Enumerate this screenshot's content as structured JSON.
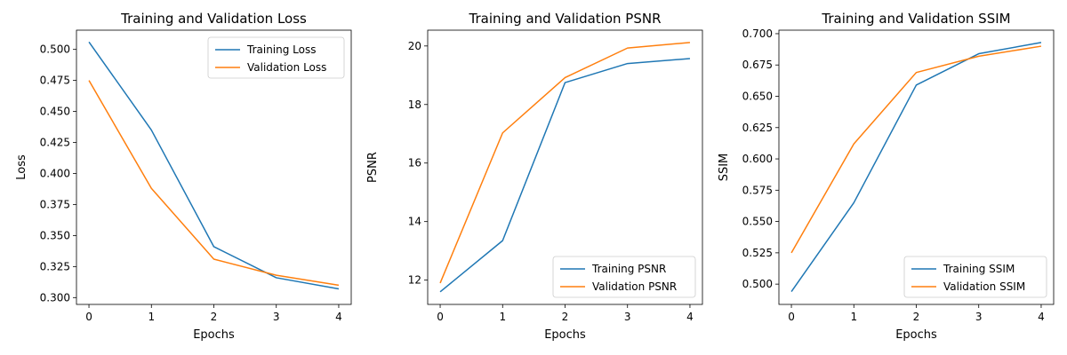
{
  "chart_data": [
    {
      "type": "line",
      "title": "Training and Validation Loss",
      "xlabel": "Epochs",
      "ylabel": "Loss",
      "x": [
        0,
        1,
        2,
        3,
        4
      ],
      "xticks": [
        "0",
        "1",
        "2",
        "3",
        "4"
      ],
      "xlim": [
        -0.2,
        4.2
      ],
      "ylim": [
        0.2945,
        0.5155
      ],
      "yticks": [
        "0.300",
        "0.325",
        "0.350",
        "0.375",
        "0.400",
        "0.425",
        "0.450",
        "0.475",
        "0.500"
      ],
      "legend": "upper-right",
      "grid": false,
      "series": [
        {
          "name": "Training Loss",
          "color": "#1f77b4",
          "values": [
            0.506,
            0.435,
            0.341,
            0.316,
            0.307
          ]
        },
        {
          "name": "Validation Loss",
          "color": "#ff7f0e",
          "values": [
            0.475,
            0.388,
            0.331,
            0.318,
            0.31
          ]
        }
      ]
    },
    {
      "type": "line",
      "title": "Training and Validation PSNR",
      "xlabel": "Epochs",
      "ylabel": "PSNR",
      "x": [
        0,
        1,
        2,
        3,
        4
      ],
      "xticks": [
        "0",
        "1",
        "2",
        "3",
        "4"
      ],
      "xlim": [
        -0.2,
        4.2
      ],
      "ylim": [
        11.17,
        20.54
      ],
      "yticks": [
        "12",
        "14",
        "16",
        "18",
        "20"
      ],
      "legend": "lower-right",
      "grid": false,
      "series": [
        {
          "name": "Training PSNR",
          "color": "#1f77b4",
          "values": [
            11.6,
            13.35,
            18.75,
            19.4,
            19.57
          ]
        },
        {
          "name": "Validation PSNR",
          "color": "#ff7f0e",
          "values": [
            11.9,
            17.03,
            18.92,
            19.93,
            20.12
          ]
        }
      ]
    },
    {
      "type": "line",
      "title": "Training and Validation SSIM",
      "xlabel": "Epochs",
      "ylabel": "SSIM",
      "x": [
        0,
        1,
        2,
        3,
        4
      ],
      "xticks": [
        "0",
        "1",
        "2",
        "3",
        "4"
      ],
      "xlim": [
        -0.2,
        4.2
      ],
      "ylim": [
        0.4838,
        0.7028
      ],
      "yticks": [
        "0.500",
        "0.525",
        "0.550",
        "0.575",
        "0.600",
        "0.625",
        "0.650",
        "0.675",
        "0.700"
      ],
      "legend": "lower-right",
      "grid": false,
      "series": [
        {
          "name": "Training SSIM",
          "color": "#1f77b4",
          "values": [
            0.494,
            0.565,
            0.659,
            0.684,
            0.693
          ]
        },
        {
          "name": "Validation SSIM",
          "color": "#ff7f0e",
          "values": [
            0.525,
            0.612,
            0.669,
            0.682,
            0.69
          ]
        }
      ]
    }
  ]
}
